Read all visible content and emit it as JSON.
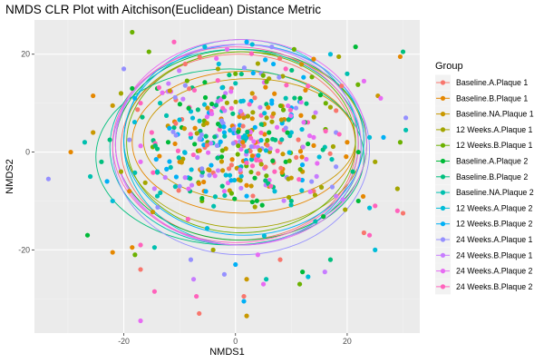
{
  "chart_data": {
    "type": "scatter",
    "title": "NMDS CLR Plot with Aitchison(Euclidean) Distance Metric",
    "xlabel": "NMDS1",
    "ylabel": "NMDS2",
    "xlim": [
      -36,
      33
    ],
    "ylim": [
      -37,
      27
    ],
    "x_ticks": [
      -20,
      0,
      20
    ],
    "y_ticks": [
      -20,
      0,
      20
    ],
    "grid": true,
    "legend": {
      "title": "Group",
      "position": "right"
    },
    "groups": [
      {
        "name": "Baseline.A.Plaque 1",
        "color": "#F8766D"
      },
      {
        "name": "Baseline.B.Plaque 1",
        "color": "#E58700"
      },
      {
        "name": "Baseline.NA.Plaque 1",
        "color": "#C99800"
      },
      {
        "name": "12 Weeks.A.Plaque 1",
        "color": "#A3A500"
      },
      {
        "name": "12 Weeks.B.Plaque 1",
        "color": "#6BB100"
      },
      {
        "name": "Baseline.A.Plaque 2",
        "color": "#00BA38"
      },
      {
        "name": "Baseline.B.Plaque 2",
        "color": "#00BF7D"
      },
      {
        "name": "Baseline.NA.Plaque 2",
        "color": "#00C0AF"
      },
      {
        "name": "12 Weeks.A.Plaque 2",
        "color": "#00BCD8"
      },
      {
        "name": "12 Weeks.B.Plaque 2",
        "color": "#00B0F6"
      },
      {
        "name": "24 Weeks.A.Plaque 1",
        "color": "#9590FF"
      },
      {
        "name": "24 Weeks.B.Plaque 1",
        "color": "#C77CFF"
      },
      {
        "name": "24 Weeks.A.Plaque 2",
        "color": "#E76BF3"
      },
      {
        "name": "24 Weeks.B.Plaque 2",
        "color": "#FF62BC"
      }
    ],
    "ellipses": [
      {
        "group": 0,
        "cx": 0.5,
        "cy": 1.0,
        "rx": 21.0,
        "ry": 19.0
      },
      {
        "group": 1,
        "cx": 1.5,
        "cy": 2.0,
        "rx": 20.0,
        "ry": 14.5
      },
      {
        "group": 2,
        "cx": 2.5,
        "cy": 2.5,
        "rx": 19.0,
        "ry": 12.5
      },
      {
        "group": 3,
        "cx": 1.5,
        "cy": 2.5,
        "rx": 21.5,
        "ry": 18.0
      },
      {
        "group": 4,
        "cx": 1.0,
        "cy": 2.0,
        "rx": 20.5,
        "ry": 18.5
      },
      {
        "group": 5,
        "cx": 1.0,
        "cy": 1.5,
        "rx": 22.5,
        "ry": 19.5
      },
      {
        "group": 6,
        "cx": -1.0,
        "cy": -1.0,
        "rx": 24.0,
        "ry": 18.0
      },
      {
        "group": 7,
        "cx": 0.0,
        "cy": 1.0,
        "rx": 22.5,
        "ry": 20.0
      },
      {
        "group": 8,
        "cx": 1.0,
        "cy": 2.0,
        "rx": 21.0,
        "ry": 21.0
      },
      {
        "group": 9,
        "cx": 1.5,
        "cy": 2.5,
        "rx": 21.5,
        "ry": 19.5
      },
      {
        "group": 10,
        "cx": 1.0,
        "cy": 0.5,
        "rx": 23.0,
        "ry": 21.5
      },
      {
        "group": 11,
        "cx": 0.5,
        "cy": 1.5,
        "rx": 22.0,
        "ry": 20.5
      },
      {
        "group": 12,
        "cx": 1.0,
        "cy": 2.0,
        "rx": 22.5,
        "ry": 21.0
      },
      {
        "group": 13,
        "cx": 0.0,
        "cy": 1.5,
        "rx": 22.0,
        "ry": 20.0
      }
    ],
    "points": [
      [
        -18.5,
        24.5,
        4
      ],
      [
        -15.5,
        20.5,
        4
      ],
      [
        -11,
        22.5,
        13
      ],
      [
        -5.5,
        21.5,
        8
      ],
      [
        -1.5,
        21,
        12
      ],
      [
        2,
        22.5,
        9
      ],
      [
        3,
        22,
        8
      ],
      [
        6.5,
        21.5,
        10
      ],
      [
        10.5,
        21,
        4
      ],
      [
        17,
        20,
        8
      ],
      [
        18.5,
        19.5,
        3
      ],
      [
        21.5,
        21.5,
        5
      ],
      [
        29.5,
        19.5,
        1
      ],
      [
        30,
        20.5,
        6
      ],
      [
        -14,
        13,
        5
      ],
      [
        -18.5,
        13,
        5
      ],
      [
        -20.5,
        12,
        3
      ],
      [
        -25.5,
        11.5,
        1
      ],
      [
        -22,
        9.5,
        2
      ],
      [
        -17,
        10,
        13
      ],
      [
        -13.5,
        10,
        7
      ],
      [
        -5,
        9,
        2
      ],
      [
        -3,
        11,
        6
      ],
      [
        3,
        12,
        2
      ],
      [
        6.5,
        10.5,
        9
      ],
      [
        9,
        11,
        7
      ],
      [
        13,
        13.5,
        13
      ],
      [
        19,
        13.5,
        0
      ],
      [
        23,
        14.5,
        12
      ],
      [
        25.5,
        11.5,
        2
      ],
      [
        26,
        11,
        12
      ],
      [
        30.5,
        7,
        10
      ],
      [
        30.5,
        4.5,
        7
      ],
      [
        29.5,
        2,
        4
      ],
      [
        26.5,
        3,
        9
      ],
      [
        -29.5,
        0,
        1
      ],
      [
        -27,
        2,
        7
      ],
      [
        -25.5,
        4,
        2
      ],
      [
        -22.5,
        2.5,
        6
      ],
      [
        -19,
        2.5,
        10
      ],
      [
        -15,
        4,
        13
      ],
      [
        -11,
        5,
        6
      ],
      [
        -8,
        3,
        8
      ],
      [
        -5,
        2,
        4
      ],
      [
        -2,
        4,
        9
      ],
      [
        0,
        2,
        13
      ],
      [
        2,
        3,
        6
      ],
      [
        4,
        1,
        11
      ],
      [
        6,
        4,
        5
      ],
      [
        8,
        2,
        0
      ],
      [
        10,
        4,
        8
      ],
      [
        12,
        1,
        3
      ],
      [
        14,
        3,
        12
      ],
      [
        16,
        1,
        7
      ],
      [
        18,
        4,
        10
      ],
      [
        20,
        2,
        1
      ],
      [
        22,
        0,
        5
      ],
      [
        24,
        3,
        8
      ],
      [
        -33.5,
        -5.5,
        10
      ],
      [
        -26,
        -5,
        7
      ],
      [
        -24,
        -2,
        6
      ],
      [
        -20.5,
        -4,
        3
      ],
      [
        -17,
        -2,
        12
      ],
      [
        -14,
        -4,
        9
      ],
      [
        -10,
        -2,
        1
      ],
      [
        -6,
        -4,
        4
      ],
      [
        -3,
        -1,
        11
      ],
      [
        1,
        -3,
        7
      ],
      [
        4,
        -1,
        0
      ],
      [
        7,
        -4,
        13
      ],
      [
        9,
        -2,
        5
      ],
      [
        12,
        -4,
        2
      ],
      [
        15,
        -1,
        8
      ],
      [
        18,
        -3,
        10
      ],
      [
        21,
        -4,
        6
      ],
      [
        25,
        -2,
        3
      ],
      [
        29,
        -7.5,
        3
      ],
      [
        29,
        -12,
        13
      ],
      [
        -26.5,
        -17,
        5
      ],
      [
        -22,
        -10,
        8
      ],
      [
        -19,
        -8,
        1
      ],
      [
        -14,
        -9,
        7
      ],
      [
        -10,
        -7,
        10
      ],
      [
        -6,
        -10,
        4
      ],
      [
        -2,
        -8,
        12
      ],
      [
        2,
        -9,
        9
      ],
      [
        6,
        -7,
        2
      ],
      [
        10,
        -10,
        6
      ],
      [
        14,
        -8,
        0
      ],
      [
        18,
        -9,
        11
      ],
      [
        22,
        -10,
        5
      ],
      [
        25,
        -11,
        13
      ],
      [
        30,
        -12.5,
        0
      ],
      [
        -22,
        -20.5,
        1
      ],
      [
        -18,
        -21,
        4
      ],
      [
        -17,
        -19,
        13
      ],
      [
        -14.5,
        -19.5,
        7
      ],
      [
        -8,
        -22,
        10
      ],
      [
        -4,
        -20,
        3
      ],
      [
        0,
        -23,
        9
      ],
      [
        4,
        -21,
        12
      ],
      [
        8,
        -22,
        0
      ],
      [
        12,
        -24.5,
        5
      ],
      [
        16,
        -24.5,
        11
      ],
      [
        17,
        -22,
        6
      ],
      [
        23,
        -16.5,
        0
      ],
      [
        24,
        -17,
        13
      ],
      [
        25,
        -20,
        8
      ],
      [
        -18.5,
        -19.5,
        1
      ],
      [
        -17,
        -24,
        0
      ],
      [
        -14.5,
        -28.5,
        13
      ],
      [
        -7.5,
        -26,
        11
      ],
      [
        -2,
        -25,
        10
      ],
      [
        2,
        -26,
        2
      ],
      [
        5,
        -27,
        12
      ],
      [
        5.5,
        -26,
        7
      ],
      [
        11.5,
        -27,
        4
      ],
      [
        13,
        -25.5,
        8
      ],
      [
        -17,
        -34.5,
        12
      ],
      [
        -7,
        -29.5,
        13
      ],
      [
        -6.5,
        -33,
        0
      ],
      [
        1.5,
        -29.5,
        0
      ],
      [
        1.5,
        -30.5,
        9
      ],
      [
        2,
        -33.5,
        2
      ],
      [
        -23,
        -6,
        9
      ],
      [
        -20,
        17,
        10
      ],
      [
        -9,
        18,
        0
      ],
      [
        0,
        16,
        4
      ],
      [
        9,
        17,
        13
      ],
      [
        20,
        16,
        7
      ],
      [
        -12,
        14,
        11
      ],
      [
        14,
        19,
        1
      ],
      [
        -3,
        18,
        8
      ],
      [
        6,
        15,
        3
      ]
    ]
  }
}
